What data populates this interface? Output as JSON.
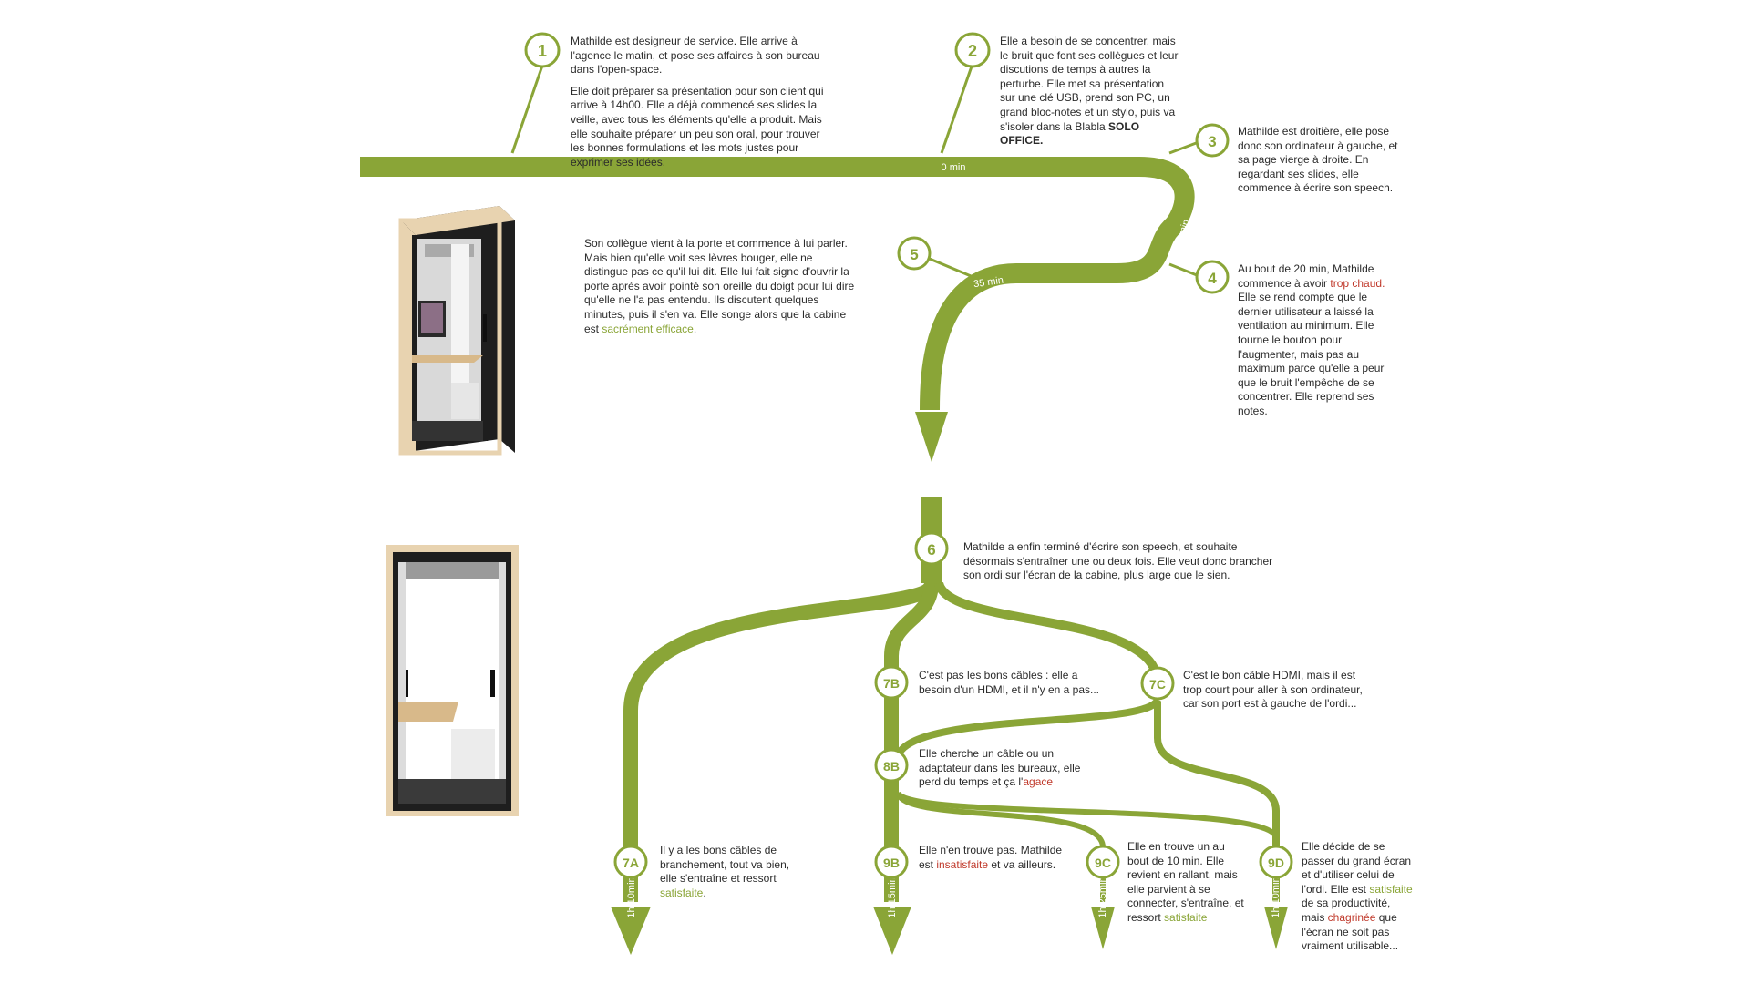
{
  "colors": {
    "accent": "#8aa537",
    "highlight_red": "#c0392b",
    "text": "#2b2b2b",
    "booth_wood": "#e8d3b0",
    "booth_black": "#1e1e1e"
  },
  "steps": {
    "s1": {
      "badge": "1",
      "p1": "Mathilde est designeur de service. Elle arrive à l'agence le matin, et pose ses affaires à son bureau dans l'open-space.",
      "p2": "Elle doit préparer sa présentation pour son client qui arrive à 14h00. Elle a déjà commencé ses slides la veille, avec tous les éléments qu'elle a produit. Mais elle souhaite préparer un peu son oral, pour trouver les bonnes formulations et les mots justes pour exprimer ses idées."
    },
    "s2": {
      "badge": "2",
      "text": "Elle a besoin de se concentrer, mais le bruit que font ses collègues et leur discutions de temps à autres la perturbe. Elle met sa présentation sur une clé USB, prend son PC, un grand bloc-notes et un stylo, puis va s'isoler dans la Blabla ",
      "bold": "SOLO OFFICE."
    },
    "s3": {
      "badge": "3",
      "text": "Mathilde est droitière, elle pose donc son ordinateur à gauche, et sa page vierge à droite. En regardant ses slides, elle commence à écrire son speech."
    },
    "s4": {
      "badge": "4",
      "t1": "Au bout de 20 min, Mathilde commence à avoir ",
      "h1": "trop chaud.",
      "t2": " Elle se rend compte que le dernier utilisateur a laissé la ventilation au minimum. Elle tourne le bouton pour l'augmenter, mais pas au maximum parce qu'elle a peur que le bruit l'empêche de se concentrer. Elle reprend ses notes."
    },
    "s5": {
      "badge": "5",
      "t1": "Son collègue vient à la porte et commence à lui parler. Mais bien qu'elle voit ses lèvres bouger, elle ne distingue pas ce qu'il lui dit. Elle lui fait signe d'ouvrir la porte après avoir pointé son oreille du doigt pour lui dire qu'elle ne l'a pas entendu. Ils discutent quelques minutes, puis il s'en va. Elle songe alors que la cabine est ",
      "h1": "sacrément efficace",
      "t2": "."
    },
    "s6": {
      "badge": "6",
      "text": "Mathilde a enfin terminé d'écrire son speech, et souhaite désormais s'entraîner une ou deux fois. Elle veut donc brancher son ordi sur l'écran de la cabine, plus large que le sien."
    },
    "s7a": {
      "badge": "7A",
      "t1": "Il y a les bons câbles de branchement, tout va bien, elle s'entraîne et ressort ",
      "h1": "satisfaite",
      "t2": "."
    },
    "s7b": {
      "badge": "7B",
      "text": "C'est pas les bons câbles : elle a besoin d'un HDMI, et il n'y en a pas..."
    },
    "s7c": {
      "badge": "7C",
      "text": "C'est le bon câble HDMI, mais il est trop court pour aller à son ordinateur, car son port est à gauche de l'ordi..."
    },
    "s8b": {
      "badge": "8B",
      "t1": "Elle cherche un câble ou un adaptateur dans les bureaux, elle perd du temps et ça l'",
      "h1": "agace"
    },
    "s9b": {
      "badge": "9B",
      "t1": "Elle n'en trouve pas. Mathilde est ",
      "h1": "insatisfaite",
      "t2": " et va ailleurs."
    },
    "s9c": {
      "badge": "9C",
      "t1": "Elle en trouve un au bout de 10 min. Elle revient en rallant, mais elle parvient à se connecter, s'entraîne, et ressort ",
      "h1": "satisfaite"
    },
    "s9d": {
      "badge": "9D",
      "t1": "Elle décide de se passer du grand écran et d'utiliser celui de l'ordi. Elle est ",
      "h1": "satisfaite",
      "t2": " de sa productivité, mais ",
      "h2": "chagrinée",
      "t3": " que l'écran ne soit pas vraiment utilisable..."
    }
  },
  "time_labels": {
    "t0": "0 min",
    "t20": "20 min",
    "t35": "35 min",
    "a7a": "1h 10min",
    "a9b": "1h 15min",
    "a9c": "1h 25min",
    "a9d": "1h 10min"
  }
}
